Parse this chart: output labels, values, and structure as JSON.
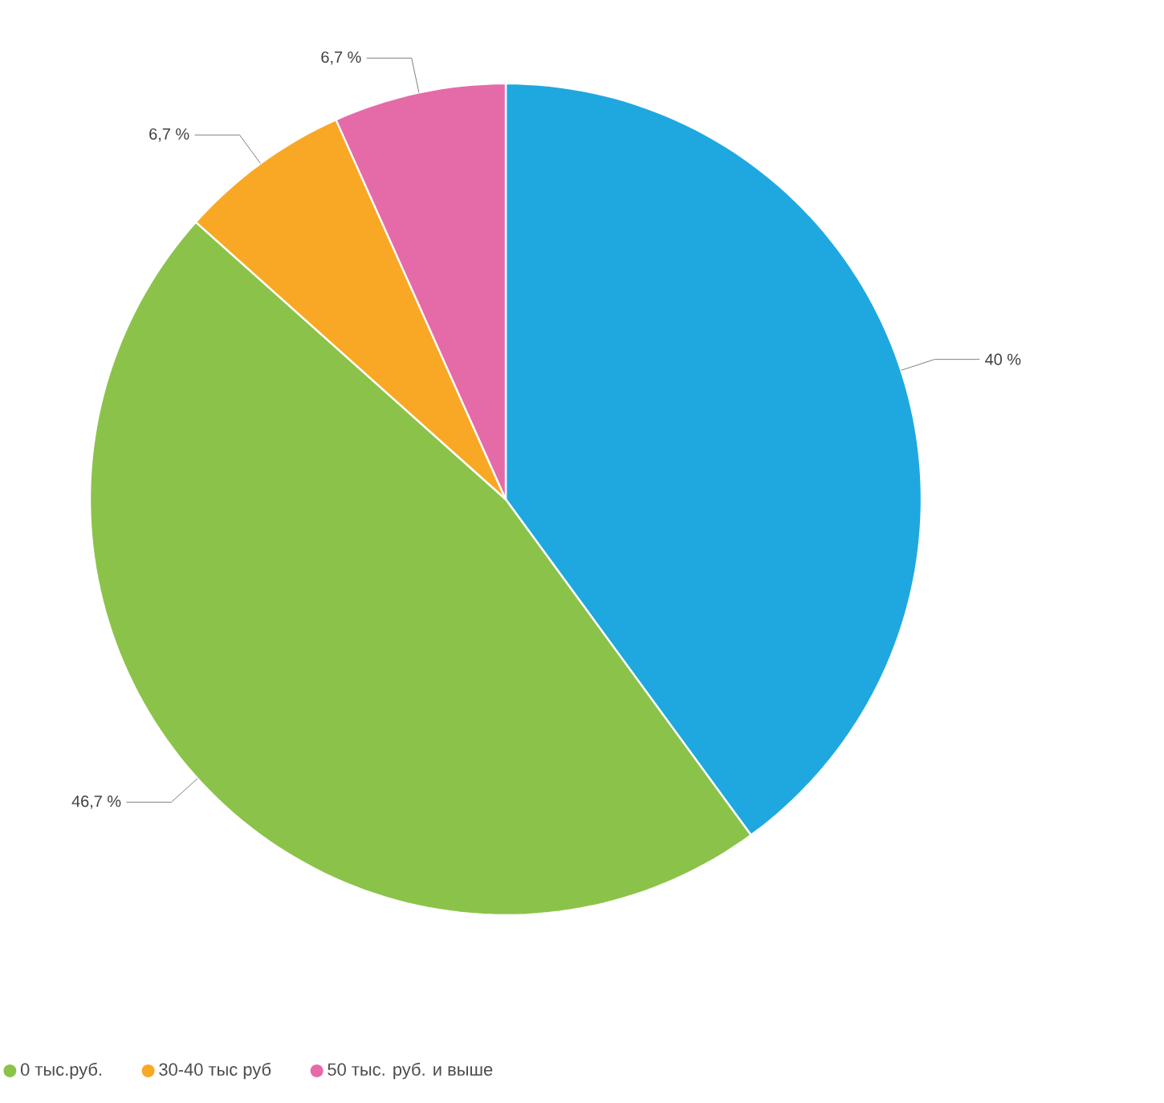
{
  "chart_data": {
    "type": "pie",
    "categories": [
      null,
      "0 тыс.руб.",
      "30-40 тыс руб",
      "50 тыс. руб. и выше"
    ],
    "values": [
      40,
      46.7,
      6.7,
      6.7
    ],
    "value_labels": [
      "40 %",
      "46,7 %",
      "6,7 %",
      "6,7 %"
    ],
    "colors": [
      "#1fa8e0",
      "#8bc34a",
      "#f9a825",
      "#e56aa8"
    ],
    "legend": "bottom"
  }
}
